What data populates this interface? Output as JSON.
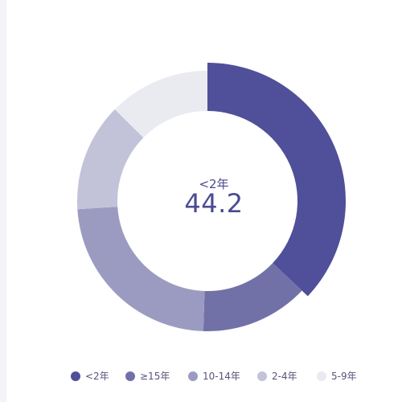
{
  "chart_data": {
    "type": "pie",
    "style": "donut",
    "categories": [
      "<2年",
      "≥15年",
      "10-14年",
      "2-4年",
      "5-9年"
    ],
    "values": [
      44.2,
      16.0,
      28.0,
      16.0,
      15.0
    ],
    "colors": [
      "#4f4f9a",
      "#7171a7",
      "#9b9bc2",
      "#c2c2d9",
      "#eaeaf1"
    ],
    "highlighted": "<2年",
    "center": {
      "label": "<2年",
      "value": "44.2"
    },
    "legend": {
      "placement": "bottom",
      "items": [
        {
          "label": "<2年",
          "color": "#4f4f9a"
        },
        {
          "label": "≥15年",
          "color": "#7171a7"
        },
        {
          "label": "10-14年",
          "color": "#9b9bc2"
        },
        {
          "label": "2-4年",
          "color": "#c2c2d9"
        },
        {
          "label": "5-9年",
          "color": "#eaeaf1"
        }
      ]
    }
  }
}
